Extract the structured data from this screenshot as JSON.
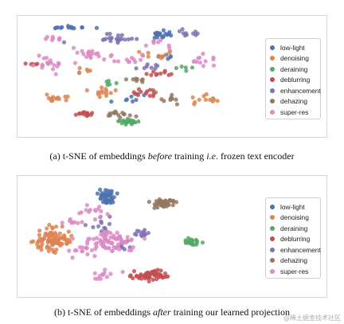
{
  "legend": {
    "labels": [
      "low-light",
      "denoising",
      "deraining",
      "deblurring",
      "enhancement",
      "dehazing",
      "super-res"
    ],
    "colors": [
      "#4c72b0",
      "#dd8452",
      "#55a868",
      "#c44e52",
      "#8172b3",
      "#937860",
      "#da8bc3"
    ]
  },
  "captions": {
    "a_prefix": "(a) t-SNE of embeddings ",
    "a_em1": "before",
    "a_mid": " training ",
    "a_em2": "i.e",
    "a_suffix": ". frozen text encoder",
    "b_prefix": "(b) t-SNE of embeddings ",
    "b_em": "after",
    "b_suffix": " training our learned projection"
  },
  "watermark": "@稀土掘金技术社区",
  "chart_data": [
    {
      "type": "scatter",
      "title": "",
      "xlabel": "",
      "ylabel": "",
      "grid": false,
      "legend_position": "right",
      "series": [
        {
          "name": "low-light",
          "color": "#4c72b0",
          "clusters": [
            [
              20,
              5,
              8,
              1.2,
              14
            ],
            [
              60,
              12,
              6,
              3,
              18
            ],
            [
              48,
              70,
              10,
              5,
              8
            ],
            [
              62,
              33,
              6,
              4,
              6
            ]
          ]
        },
        {
          "name": "denoising",
          "color": "#dd8452",
          "clusters": [
            [
              35,
              65,
              7,
              4,
              14
            ],
            [
              15,
              70,
              6,
              4,
              14
            ],
            [
              58,
              30,
              8,
              4,
              10
            ],
            [
              80,
              70,
              6,
              4,
              12
            ],
            [
              28,
              45,
              5,
              3,
              6
            ]
          ]
        },
        {
          "name": "deraining",
          "color": "#55a868",
          "clusters": [
            [
              47,
              92,
              5,
              3,
              22
            ],
            [
              40,
              55,
              6,
              4,
              5
            ],
            [
              70,
              40,
              6,
              5,
              5
            ]
          ]
        },
        {
          "name": "deblurring",
          "color": "#c44e52",
          "clusters": [
            [
              53,
              65,
              6,
              4,
              12
            ],
            [
              27,
              85,
              4,
              2,
              14
            ],
            [
              60,
              48,
              6,
              4,
              10
            ],
            [
              5,
              40,
              3,
              4,
              5
            ]
          ]
        },
        {
          "name": "enhancement",
          "color": "#8172b3",
          "clusters": [
            [
              40,
              15,
              10,
              5,
              24
            ],
            [
              55,
              40,
              8,
              4,
              8
            ],
            [
              72,
              10,
              8,
              4,
              10
            ]
          ]
        },
        {
          "name": "dehazing",
          "color": "#937860",
          "clusters": [
            [
              42,
              85,
              6,
              3,
              14
            ],
            [
              65,
              70,
              7,
              5,
              10
            ],
            [
              50,
              52,
              6,
              4,
              8
            ]
          ]
        },
        {
          "name": "super-res",
          "color": "#da8bc3",
          "clusters": [
            [
              10,
              40,
              7,
              6,
              18
            ],
            [
              28,
              30,
              8,
              5,
              16
            ],
            [
              45,
              35,
              10,
              6,
              14
            ],
            [
              14,
              15,
              5,
              3,
              8
            ],
            [
              80,
              35,
              8,
              5,
              12
            ],
            [
              58,
              20,
              8,
              4,
              8
            ]
          ]
        }
      ]
    },
    {
      "type": "scatter",
      "title": "",
      "xlabel": "",
      "ylabel": "",
      "grid": false,
      "legend_position": "right",
      "series": [
        {
          "name": "low-light",
          "color": "#4c72b0",
          "clusters": [
            [
              37,
              14,
              4,
              6,
              45
            ]
          ]
        },
        {
          "name": "denoising",
          "color": "#dd8452",
          "clusters": [
            [
              12,
              52,
              7,
              10,
              90
            ]
          ]
        },
        {
          "name": "deraining",
          "color": "#55a868",
          "clusters": [
            [
              74,
              55,
              3,
              3,
              28
            ]
          ]
        },
        {
          "name": "deblurring",
          "color": "#c44e52",
          "clusters": [
            [
              56,
              86,
              7,
              5,
              65
            ]
          ]
        },
        {
          "name": "enhancement",
          "color": "#8172b3",
          "clusters": [
            [
              52,
              47,
              3,
              3,
              14
            ],
            [
              34,
              40,
              6,
              8,
              12
            ],
            [
              44,
              58,
              5,
              4,
              6
            ]
          ]
        },
        {
          "name": "dehazing",
          "color": "#937860",
          "clusters": [
            [
              62,
              19,
              5,
              4,
              48
            ]
          ]
        },
        {
          "name": "super-res",
          "color": "#da8bc3",
          "clusters": [
            [
              38,
              55,
              9,
              10,
              75
            ],
            [
              30,
              26,
              8,
              5,
              14
            ],
            [
              36,
              85,
              6,
              4,
              12
            ],
            [
              25,
              63,
              6,
              8,
              14
            ],
            [
              22,
              36,
              4,
              3,
              8
            ]
          ]
        }
      ]
    }
  ]
}
